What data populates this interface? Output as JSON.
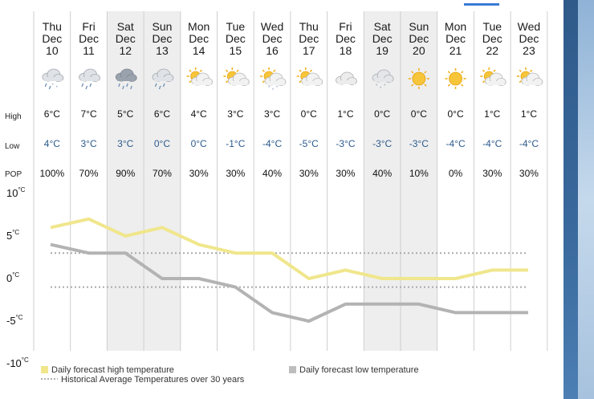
{
  "row_labels": {
    "high": "High",
    "low": "Low",
    "pop": "POP"
  },
  "colors": {
    "high_line": "#f0e68c",
    "low_line": "#b3b3b3",
    "historical": "#aaaaaa",
    "shaded_column": "#eeeeee",
    "low_text": "#2d5b8e",
    "sun": "#f2b01e"
  },
  "days": [
    {
      "dow": "Thu",
      "mon": "Dec",
      "date": "10",
      "icon": "rain-snow-icon",
      "high": "6°C",
      "low": "4°C",
      "pop": "100%",
      "shaded": false
    },
    {
      "dow": "Fri",
      "mon": "Dec",
      "date": "11",
      "icon": "rain-icon",
      "high": "7°C",
      "low": "3°C",
      "pop": "70%",
      "shaded": false
    },
    {
      "dow": "Sat",
      "mon": "Dec",
      "date": "12",
      "icon": "heavy-rain-icon",
      "high": "5°C",
      "low": "3°C",
      "pop": "90%",
      "shaded": true
    },
    {
      "dow": "Sun",
      "mon": "Dec",
      "date": "13",
      "icon": "rain-icon",
      "high": "6°C",
      "low": "0°C",
      "pop": "70%",
      "shaded": true
    },
    {
      "dow": "Mon",
      "mon": "Dec",
      "date": "14",
      "icon": "sun-cloud-icon",
      "high": "4°C",
      "low": "0°C",
      "pop": "30%",
      "shaded": false
    },
    {
      "dow": "Tue",
      "mon": "Dec",
      "date": "15",
      "icon": "sun-cloud-icon",
      "high": "3°C",
      "low": "-1°C",
      "pop": "30%",
      "shaded": false
    },
    {
      "dow": "Wed",
      "mon": "Dec",
      "date": "16",
      "icon": "sun-cloud-snow-icon",
      "high": "3°C",
      "low": "-4°C",
      "pop": "40%",
      "shaded": false
    },
    {
      "dow": "Thu",
      "mon": "Dec",
      "date": "17",
      "icon": "sun-cloud-icon",
      "high": "0°C",
      "low": "-5°C",
      "pop": "30%",
      "shaded": false
    },
    {
      "dow": "Fri",
      "mon": "Dec",
      "date": "18",
      "icon": "cloud-icon",
      "high": "1°C",
      "low": "-3°C",
      "pop": "30%",
      "shaded": false
    },
    {
      "dow": "Sat",
      "mon": "Dec",
      "date": "19",
      "icon": "snow-icon",
      "high": "0°C",
      "low": "-3°C",
      "pop": "40%",
      "shaded": true
    },
    {
      "dow": "Sun",
      "mon": "Dec",
      "date": "20",
      "icon": "sun-icon",
      "high": "0°C",
      "low": "-3°C",
      "pop": "10%",
      "shaded": true
    },
    {
      "dow": "Mon",
      "mon": "Dec",
      "date": "21",
      "icon": "sun-icon",
      "high": "0°C",
      "low": "-4°C",
      "pop": "0%",
      "shaded": false
    },
    {
      "dow": "Tue",
      "mon": "Dec",
      "date": "22",
      "icon": "sun-cloud-icon",
      "high": "1°C",
      "low": "-4°C",
      "pop": "30%",
      "shaded": false
    },
    {
      "dow": "Wed",
      "mon": "Dec",
      "date": "23",
      "icon": "sun-cloud-icon",
      "high": "1°C",
      "low": "-4°C",
      "pop": "30%",
      "shaded": false
    }
  ],
  "chart_data": {
    "type": "line",
    "categories": [
      "Thu Dec 10",
      "Fri Dec 11",
      "Sat Dec 12",
      "Sun Dec 13",
      "Mon Dec 14",
      "Tue Dec 15",
      "Wed Dec 16",
      "Thu Dec 17",
      "Fri Dec 18",
      "Sat Dec 19",
      "Sun Dec 20",
      "Mon Dec 21",
      "Tue Dec 22",
      "Wed Dec 23"
    ],
    "series": [
      {
        "name": "Daily forecast high temperature",
        "values": [
          6,
          7,
          5,
          6,
          4,
          3,
          3,
          0,
          1,
          0,
          0,
          0,
          1,
          1
        ]
      },
      {
        "name": "Daily forecast low temperature",
        "values": [
          4,
          3,
          3,
          0,
          0,
          -1,
          -4,
          -5,
          -3,
          -3,
          -3,
          -4,
          -4,
          -4
        ]
      }
    ],
    "historical_average": {
      "name": "Historical Average Temperatures over 30 years",
      "values": [
        3,
        -1
      ]
    },
    "y_ticks": [
      10,
      5,
      0,
      -5,
      -10
    ],
    "y_unit": "°C",
    "ylim": [
      -10,
      10
    ],
    "legend_position": "bottom"
  },
  "legend": {
    "high": "Daily forecast high temperature",
    "low": "Daily forecast low temperature",
    "historical": "Historical Average Temperatures over 30 years"
  }
}
